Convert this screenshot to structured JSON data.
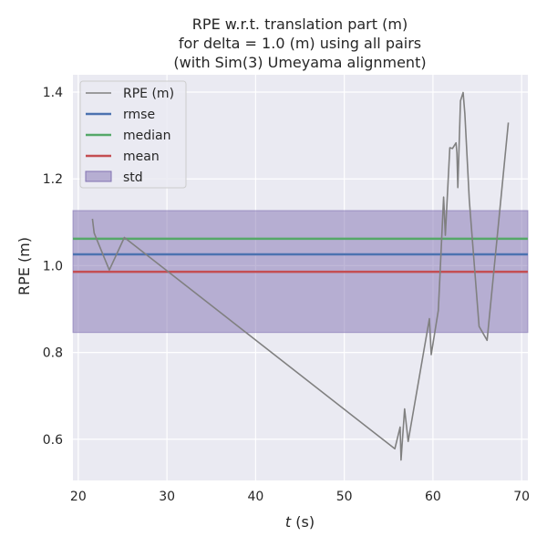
{
  "chart_data": {
    "type": "line",
    "title": [
      "RPE w.r.t. translation part (m)",
      "for delta = 1.0 (m) using all pairs",
      "(with Sim(3) Umeyama alignment)"
    ],
    "xlabel_prefix": "t",
    "xlabel_suffix": " (s)",
    "ylabel": "RPE (m)",
    "xlim": [
      19.4,
      70.7
    ],
    "ylim": [
      0.505,
      1.44
    ],
    "xticks": [
      20,
      30,
      40,
      50,
      60,
      70
    ],
    "yticks": [
      0.6,
      0.8,
      1.0,
      1.2,
      1.4
    ],
    "ytick_labels": [
      "0.6",
      "0.8",
      "1.0",
      "1.2",
      "1.4"
    ],
    "grid": true,
    "legend_position": "top-left",
    "series": [
      {
        "name": "RPE (m)",
        "color": "#808080",
        "x": [
          21.6,
          21.8,
          23.5,
          25.2,
          55.7,
          56.3,
          56.4,
          56.8,
          57.2,
          59.6,
          59.8,
          60.6,
          61.2,
          61.4,
          61.9,
          62.2,
          62.6,
          62.7,
          62.8,
          63.1,
          63.4,
          63.6,
          64.1,
          65.2,
          66.1,
          68.5
        ],
        "y": [
          1.108,
          1.075,
          0.99,
          1.065,
          0.578,
          0.628,
          0.552,
          0.67,
          0.595,
          0.878,
          0.795,
          0.897,
          1.158,
          1.07,
          1.272,
          1.27,
          1.283,
          1.26,
          1.18,
          1.38,
          1.399,
          1.35,
          1.15,
          0.86,
          0.828,
          1.33
        ]
      }
    ],
    "stats": [
      {
        "name": "rmse",
        "value": 1.026,
        "color": "#4C72B0"
      },
      {
        "name": "median",
        "value": 1.062,
        "color": "#55A868"
      },
      {
        "name": "mean",
        "value": 0.986,
        "color": "#C44E52"
      }
    ],
    "std_band": {
      "name": "std",
      "low": 0.846,
      "high": 1.127,
      "color": "#8172B2"
    },
    "colors": {
      "background": "#EAEAF2",
      "grid": "#FFFFFF"
    }
  }
}
